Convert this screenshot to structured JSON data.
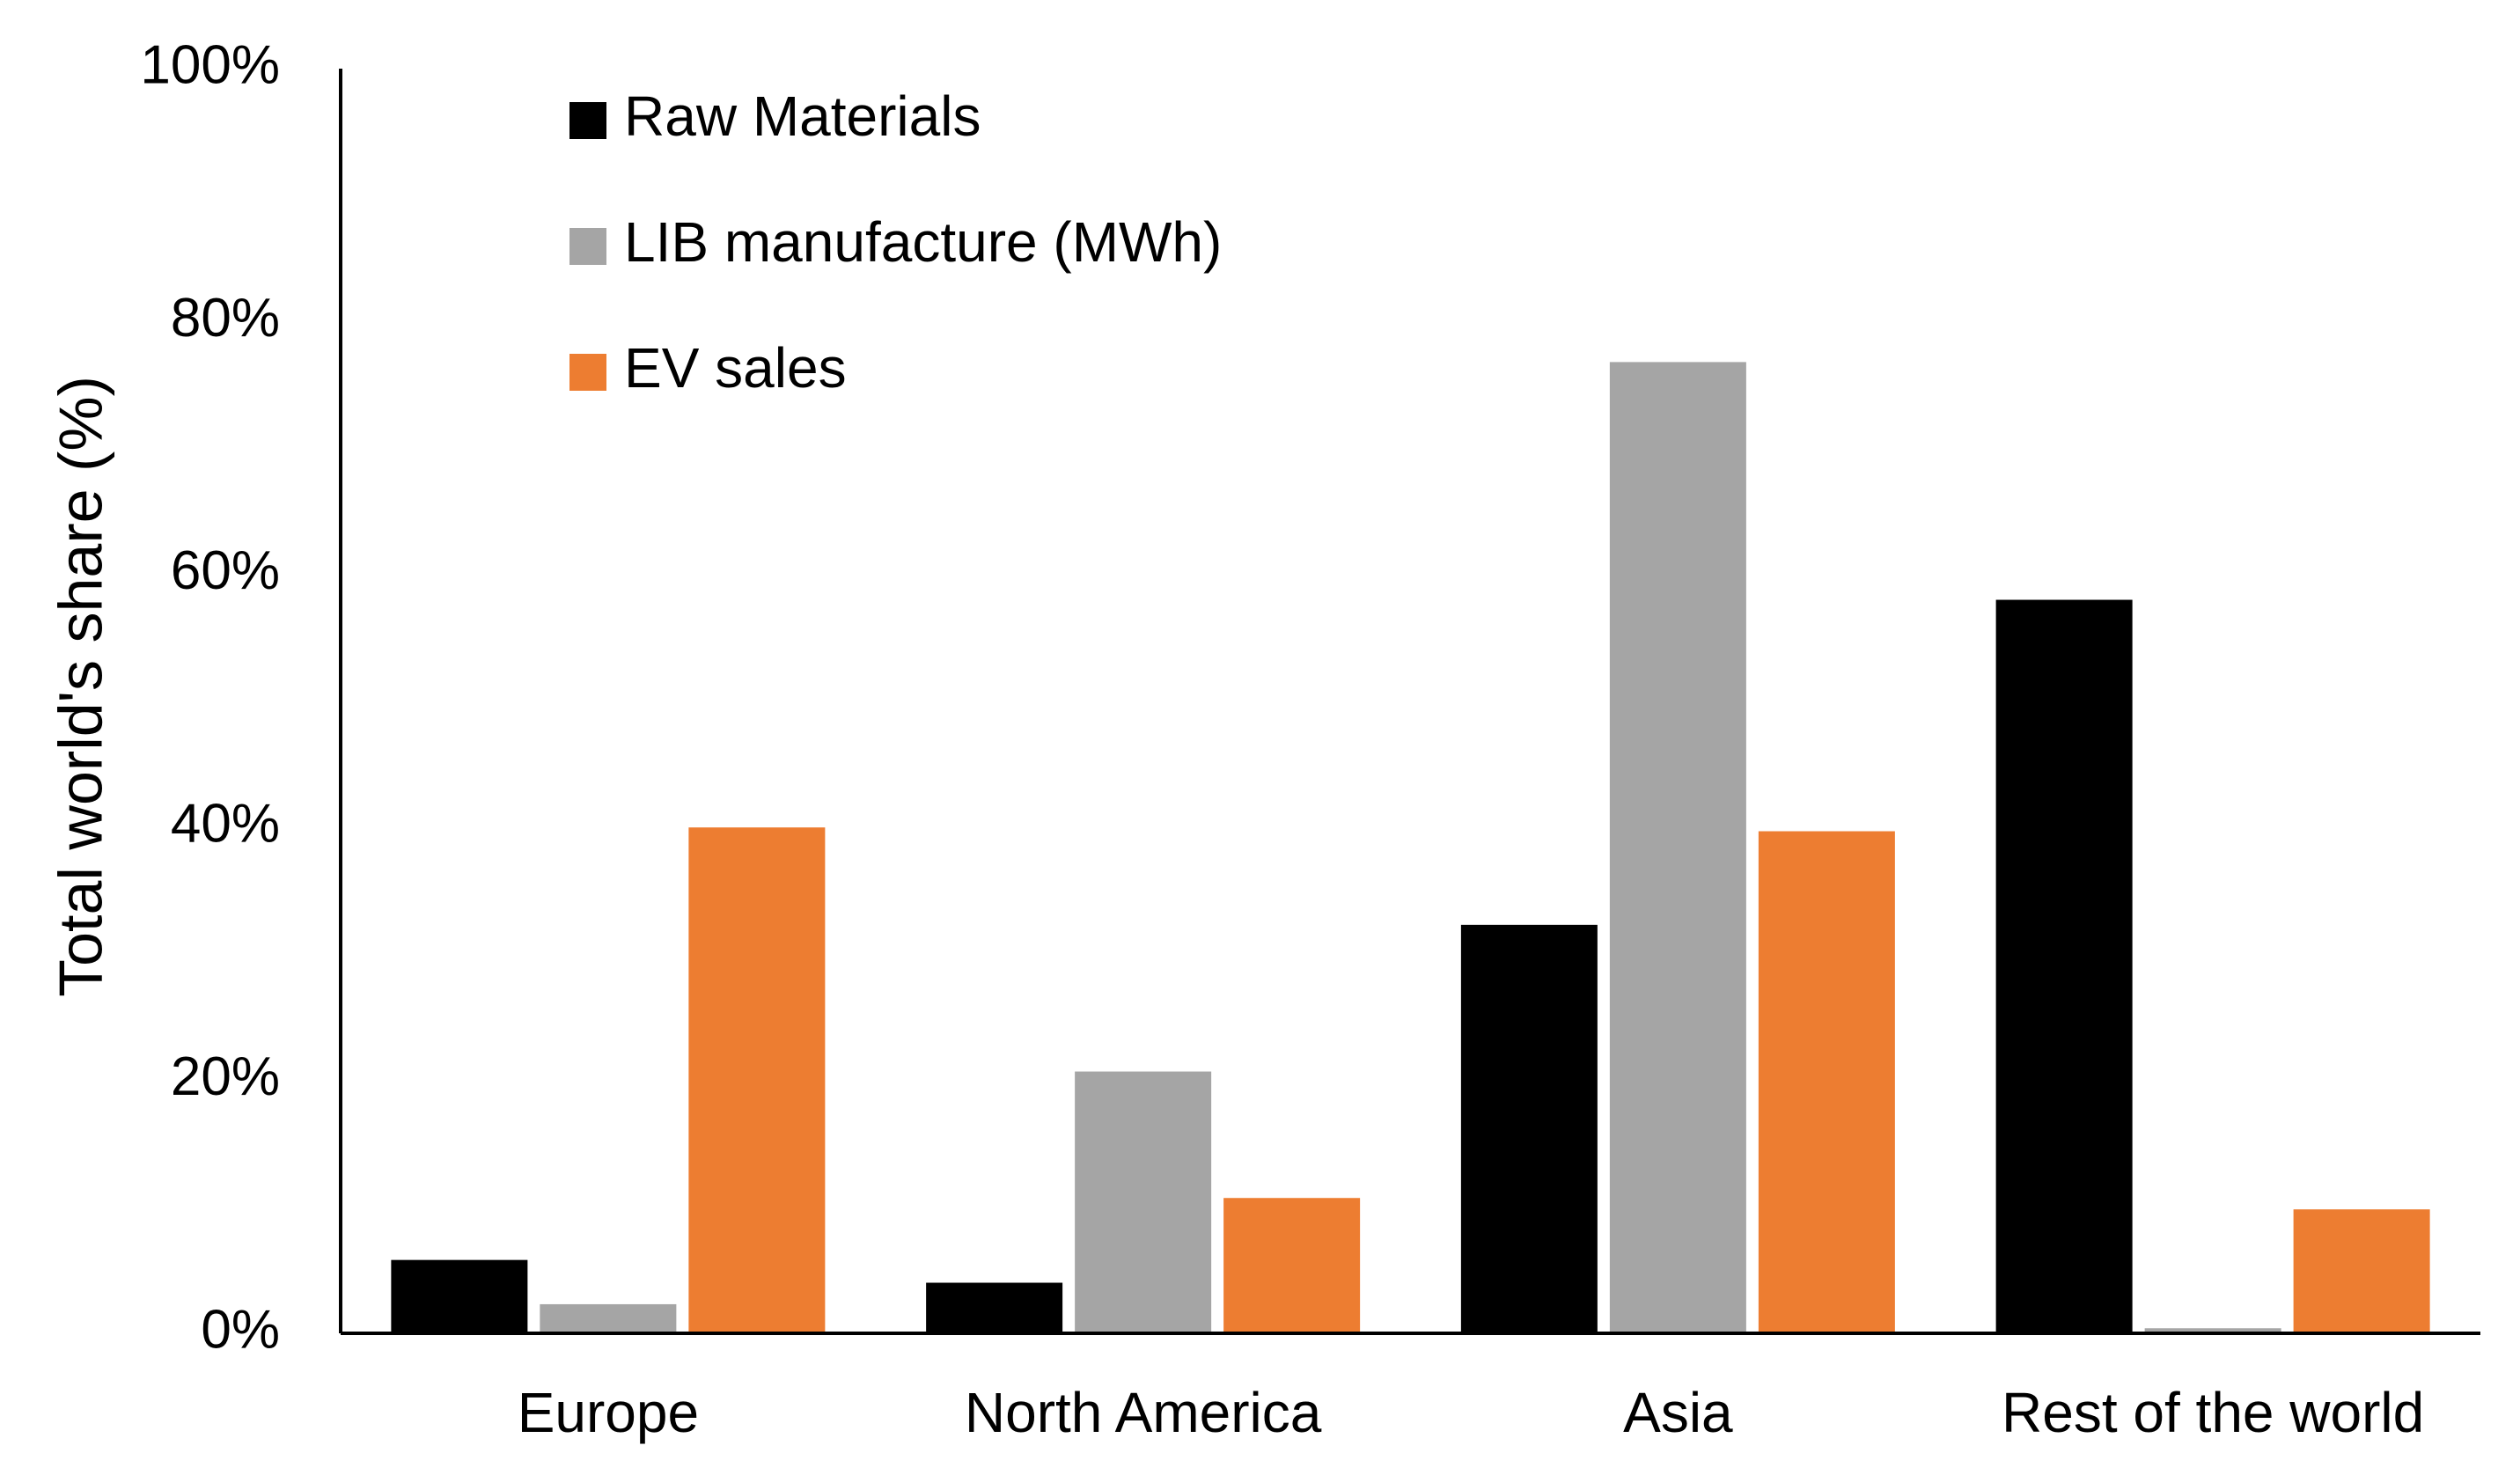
{
  "chart_data": {
    "type": "bar",
    "title": "",
    "xlabel": "",
    "ylabel": "Total world's share (%)",
    "ylim": [
      0,
      100
    ],
    "yticks": [
      0,
      20,
      40,
      60,
      80,
      100
    ],
    "ytick_labels": [
      "0%",
      "20%",
      "40%",
      "60%",
      "80%",
      "100%"
    ],
    "grid": false,
    "legend_position": "top-left",
    "categories": [
      "Europe",
      "North America",
      "Asia",
      "Rest of the world"
    ],
    "series": [
      {
        "name": "Raw Materials",
        "color": "#000000",
        "values": [
          5.8,
          4.0,
          32.3,
          58.0
        ]
      },
      {
        "name": "LIB manufacture (MWh)",
        "color": "#A5A5A5",
        "values": [
          2.3,
          20.7,
          76.8,
          0.4
        ]
      },
      {
        "name": "EV sales",
        "color": "#ED7D31",
        "values": [
          40.0,
          10.7,
          39.7,
          9.8
        ]
      }
    ]
  }
}
